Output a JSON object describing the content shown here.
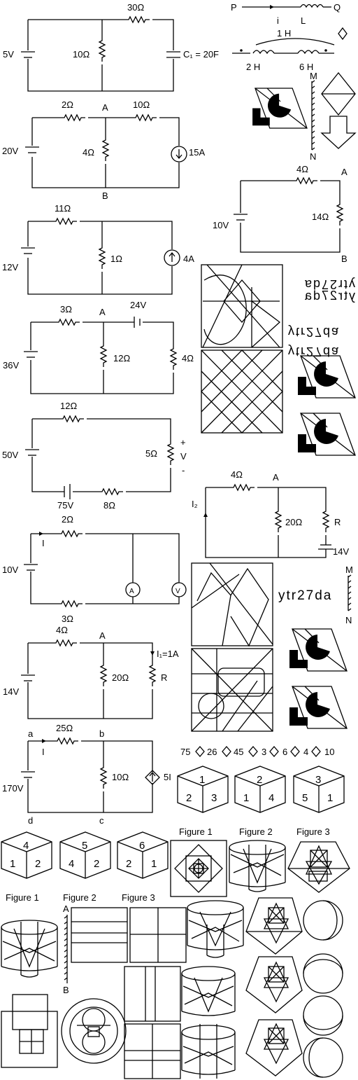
{
  "c1": {
    "r1": "30Ω",
    "r2": "10Ω",
    "v": "5V",
    "cap": "C₁ = 20F"
  },
  "c2": {
    "r1": "2Ω",
    "r2": "10Ω",
    "r3": "4Ω",
    "v": "20V",
    "i": "15A",
    "a": "A",
    "b": "B"
  },
  "c3": {
    "r1": "11Ω",
    "r2": "1Ω",
    "v": "12V",
    "i": "4A"
  },
  "c4": {
    "r1": "3Ω",
    "r2": "12Ω",
    "r3": "4Ω",
    "v": "36V",
    "v2": "24V",
    "a": "A"
  },
  "c5": {
    "r1": "12Ω",
    "r2": "5Ω",
    "r3": "8Ω",
    "v": "50V",
    "v2": "75V",
    "vm": "V",
    "plus": "+",
    "minus": "-"
  },
  "c6": {
    "r1": "2Ω",
    "r2": "3Ω",
    "v": "10V",
    "i": "I",
    "am": "A",
    "vm": "V"
  },
  "c7": {
    "r1": "4Ω",
    "r2": "20Ω",
    "r3": "R",
    "v": "14V",
    "a": "A",
    "i": "I₁=1A"
  },
  "c8": {
    "r1": "25Ω",
    "r2": "10Ω",
    "v": "170V",
    "dep": "5I",
    "i": "I",
    "a": "a",
    "b": "b",
    "c": "c",
    "d": "d"
  },
  "ind": {
    "p": "P",
    "q": "Q",
    "i": "i",
    "l": "L",
    "m": "1 H",
    "l1": "2 H",
    "l2": "6 H"
  },
  "cR": {
    "r1": "4Ω",
    "r2": "14Ω",
    "v": "10V",
    "a": "A",
    "b": "B"
  },
  "cR2": {
    "r1": "4Ω",
    "r2": "20Ω",
    "r3": "R",
    "v": "14V",
    "a": "A",
    "i": "I₂"
  },
  "mirror": {
    "m": "M",
    "n": "N",
    "m2": "M",
    "n2": "N",
    "a": "A",
    "b": "B"
  },
  "words": {
    "w1": "ytr27da",
    "w2": "ytr27da",
    "w3": "ytr27da",
    "w4": "ytr27da",
    "w5": "ytr27da"
  },
  "seq": {
    "items": [
      "75",
      "26",
      "45",
      "3",
      "6",
      "4",
      "10"
    ]
  },
  "cubes": [
    {
      "top": "1",
      "left": "2",
      "right": "3"
    },
    {
      "top": "2",
      "left": "1",
      "right": "4"
    },
    {
      "top": "3",
      "left": "5",
      "right": "1"
    },
    {
      "top": "4",
      "left": "1",
      "right": "2"
    },
    {
      "top": "5",
      "left": "4",
      "right": "2"
    },
    {
      "top": "6",
      "left": "2",
      "right": "1"
    }
  ],
  "figs": {
    "f1": "Figure 1",
    "f2": "Figure 2",
    "f3": "Figure 3",
    "g1": "Figure 1",
    "g2": "Figure 2",
    "g3": "Figure 3"
  }
}
